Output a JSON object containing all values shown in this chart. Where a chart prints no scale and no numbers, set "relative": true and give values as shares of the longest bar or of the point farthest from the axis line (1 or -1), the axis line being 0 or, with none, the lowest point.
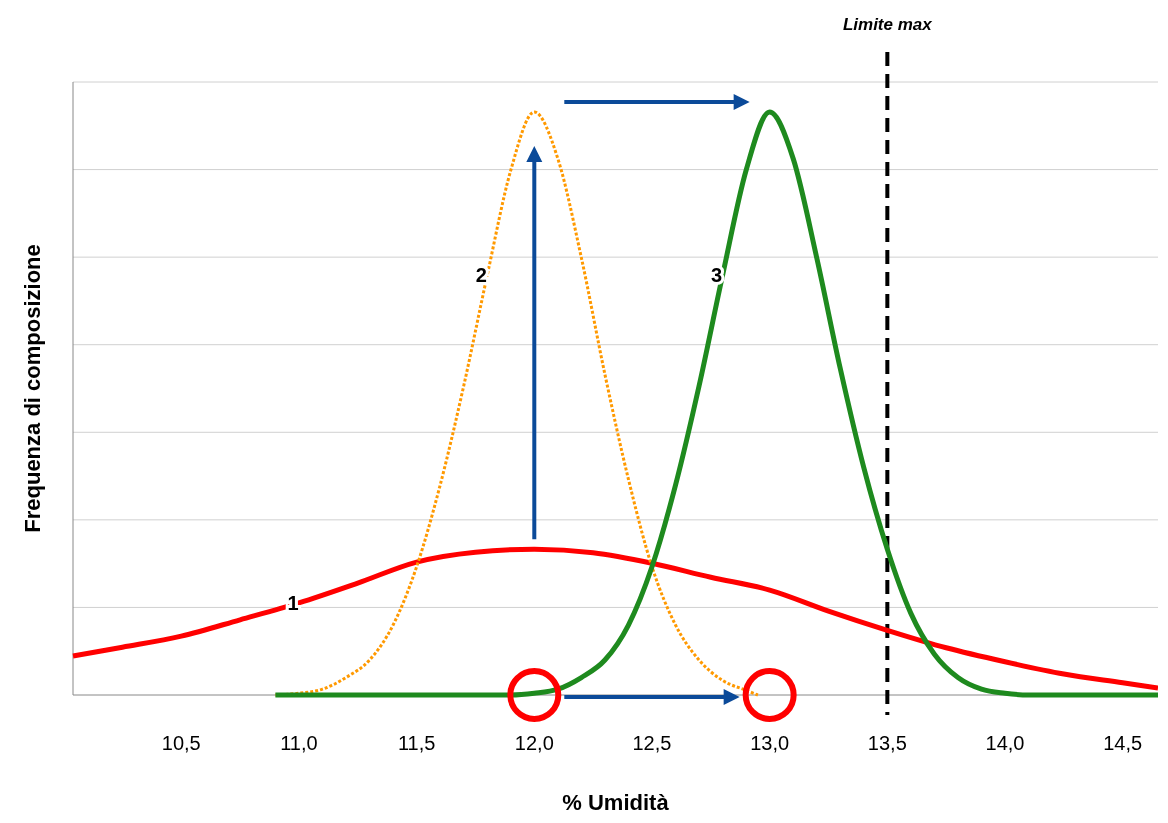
{
  "chart_data": {
    "type": "line",
    "xlabel": "% Umidità",
    "ylabel": "Frequenza di composizione",
    "relative": true,
    "grid": "y",
    "marker": "none",
    "xlim": [
      10.04,
      14.65
    ],
    "xticks": [
      {
        "value": 10.5,
        "label": "10,5"
      },
      {
        "value": 11,
        "label": "11,0"
      },
      {
        "value": 11.5,
        "label": "11,5"
      },
      {
        "value": 12,
        "label": "12,0"
      },
      {
        "value": 12.5,
        "label": "12,5"
      },
      {
        "value": 13,
        "label": "13,0"
      },
      {
        "value": 13.5,
        "label": "13,5"
      },
      {
        "value": 14,
        "label": "14,0"
      },
      {
        "value": 14.5,
        "label": "14,5"
      }
    ],
    "ref_lines": [
      {
        "axis": "x",
        "value": 13.5,
        "label": "Limite max",
        "color": "#000000",
        "line_style": "dashed"
      }
    ],
    "series": [
      {
        "name": "1",
        "color": "#ff0000",
        "line_style": "solid",
        "x": [
          10.04,
          10.25,
          10.5,
          10.75,
          11,
          11.25,
          11.5,
          11.75,
          12,
          12.25,
          12.5,
          12.75,
          13,
          13.25,
          13.5,
          13.75,
          14,
          14.25,
          14.5,
          14.65
        ],
        "values": [
          0.067,
          0.082,
          0.101,
          0.129,
          0.158,
          0.192,
          0.228,
          0.245,
          0.25,
          0.244,
          0.226,
          0.202,
          0.18,
          0.144,
          0.111,
          0.081,
          0.057,
          0.036,
          0.021,
          0.012
        ]
      },
      {
        "name": "2",
        "color": "#ff9900",
        "line_style": "dotted",
        "x": [
          10.9,
          11,
          11.1,
          11.2,
          11.3,
          11.4,
          11.5,
          11.6,
          11.7,
          11.8,
          11.9,
          12,
          12.1,
          12.2,
          12.3,
          12.4,
          12.5,
          12.6,
          12.7,
          12.8,
          12.9,
          12.95
        ],
        "values": [
          0,
          0.003,
          0.01,
          0.03,
          0.06,
          0.12,
          0.22,
          0.36,
          0.53,
          0.72,
          0.9,
          1,
          0.92,
          0.75,
          0.55,
          0.37,
          0.22,
          0.12,
          0.06,
          0.025,
          0.008,
          0
        ]
      },
      {
        "name": "3",
        "color": "#1e8a1e",
        "line_style": "solid",
        "x": [
          10.9,
          11.9,
          12,
          12.1,
          12.2,
          12.3,
          12.4,
          12.5,
          12.6,
          12.7,
          12.8,
          12.9,
          13,
          13.1,
          13.2,
          13.3,
          13.4,
          13.5,
          13.6,
          13.7,
          13.8,
          13.9,
          14,
          14.1,
          14.2,
          14.65
        ],
        "values": [
          0,
          0,
          0.003,
          0.01,
          0.03,
          0.06,
          0.12,
          0.22,
          0.36,
          0.53,
          0.72,
          0.9,
          1,
          0.92,
          0.75,
          0.56,
          0.39,
          0.25,
          0.14,
          0.07,
          0.03,
          0.01,
          0.003,
          0,
          0,
          0
        ]
      }
    ]
  }
}
